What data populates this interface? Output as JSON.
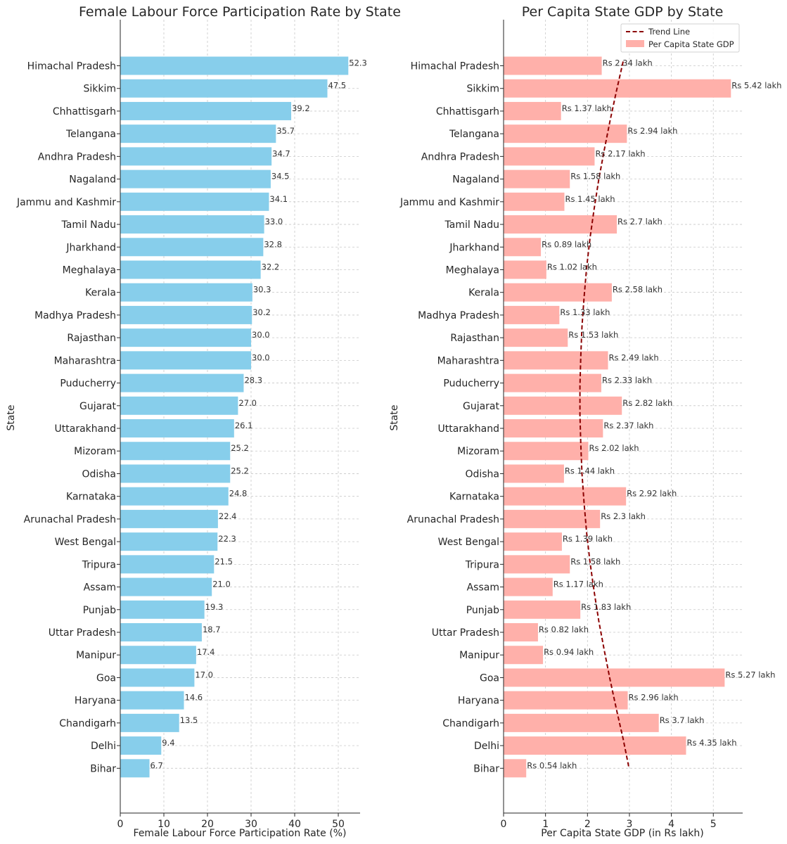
{
  "chart_data": [
    {
      "type": "bar",
      "orientation": "horizontal",
      "title": "Female Labour Force Participation Rate by State",
      "xlabel": "Female Labour Force Participation Rate (%)",
      "ylabel": "State",
      "xlim": [
        0,
        55
      ],
      "xticks": [
        0,
        10,
        20,
        30,
        40,
        50
      ],
      "grid": true,
      "color": "#87CEEB",
      "categories": [
        "Himachal Pradesh",
        "Sikkim",
        "Chhattisgarh",
        "Telangana",
        "Andhra Pradesh",
        "Nagaland",
        "Jammu and Kashmir",
        "Tamil Nadu",
        "Jharkhand",
        "Meghalaya",
        "Kerala",
        "Madhya Pradesh",
        "Rajasthan",
        "Maharashtra",
        "Puducherry",
        "Gujarat",
        "Uttarakhand",
        "Mizoram",
        "Odisha",
        "Karnataka",
        "Arunachal Pradesh",
        "West Bengal",
        "Tripura",
        "Assam",
        "Punjab",
        "Uttar Pradesh",
        "Manipur",
        "Goa",
        "Haryana",
        "Chandigarh",
        "Delhi",
        "Bihar"
      ],
      "values": [
        52.3,
        47.5,
        39.2,
        35.7,
        34.7,
        34.5,
        34.1,
        33.0,
        32.8,
        32.2,
        30.3,
        30.2,
        30.0,
        30.0,
        28.3,
        27.0,
        26.1,
        25.2,
        25.2,
        24.8,
        22.4,
        22.3,
        21.5,
        21.0,
        19.3,
        18.7,
        17.4,
        17.0,
        14.6,
        13.5,
        9.4,
        6.7
      ],
      "labels": [
        "52.3",
        "47.5",
        "39.2",
        "35.7",
        "34.7",
        "34.5",
        "34.1",
        "33.0",
        "32.8",
        "32.2",
        "30.3",
        "30.2",
        "30.0",
        "30.0",
        "28.3",
        "27.0",
        "26.1",
        "25.2",
        "25.2",
        "24.8",
        "22.4",
        "22.3",
        "21.5",
        "21.0",
        "19.3",
        "18.7",
        "17.4",
        "17.0",
        "14.6",
        "13.5",
        "9.4",
        "6.7"
      ]
    },
    {
      "type": "bar",
      "orientation": "horizontal",
      "title": "Per Capita State GDP by State",
      "xlabel": "Per Capita State GDP (in Rs lakh)",
      "ylabel": "State",
      "xlim": [
        0,
        5.7
      ],
      "xticks": [
        0,
        1,
        2,
        3,
        4,
        5
      ],
      "grid": true,
      "color": "#FFB0AA",
      "trend_color": "#8B0000",
      "legend_position": "upper right",
      "legend": [
        "Trend Line",
        "Per Capita State GDP"
      ],
      "categories": [
        "Himachal Pradesh",
        "Sikkim",
        "Chhattisgarh",
        "Telangana",
        "Andhra Pradesh",
        "Nagaland",
        "Jammu and Kashmir",
        "Tamil Nadu",
        "Jharkhand",
        "Meghalaya",
        "Kerala",
        "Madhya Pradesh",
        "Rajasthan",
        "Maharashtra",
        "Puducherry",
        "Gujarat",
        "Uttarakhand",
        "Mizoram",
        "Odisha",
        "Karnataka",
        "Arunachal Pradesh",
        "West Bengal",
        "Tripura",
        "Assam",
        "Punjab",
        "Uttar Pradesh",
        "Manipur",
        "Goa",
        "Haryana",
        "Chandigarh",
        "Delhi",
        "Bihar"
      ],
      "values": [
        2.34,
        5.42,
        1.37,
        2.94,
        2.17,
        1.58,
        1.45,
        2.7,
        0.89,
        1.02,
        2.58,
        1.33,
        1.53,
        2.49,
        2.33,
        2.82,
        2.37,
        2.02,
        1.44,
        2.92,
        2.3,
        1.39,
        1.58,
        1.17,
        1.83,
        0.82,
        0.94,
        5.27,
        2.96,
        3.7,
        4.35,
        0.54
      ],
      "labels": [
        "Rs 2.34 lakh",
        "Rs 5.42 lakh",
        "Rs 1.37 lakh",
        "Rs 2.94 lakh",
        "Rs 2.17 lakh",
        "Rs 1.58 lakh",
        "Rs 1.45 lakh",
        "Rs 2.7 lakh",
        "Rs 0.89 lakh",
        "Rs 1.02 lakh",
        "Rs 2.58 lakh",
        "Rs 1.33 lakh",
        "Rs 1.53 lakh",
        "Rs 2.49 lakh",
        "Rs 2.33 lakh",
        "Rs 2.82 lakh",
        "Rs 2.37 lakh",
        "Rs 2.02 lakh",
        "Rs 1.44 lakh",
        "Rs 2.92 lakh",
        "Rs 2.3 lakh",
        "Rs 1.39 lakh",
        "Rs 1.58 lakh",
        "Rs 1.17 lakh",
        "Rs 1.83 lakh",
        "Rs 0.82 lakh",
        "Rs 0.94 lakh",
        "Rs 5.27 lakh",
        "Rs 2.96 lakh",
        "Rs 3.7 lakh",
        "Rs 4.35 lakh",
        "Rs 0.54 lakh"
      ],
      "trend_line": {
        "type": "polynomial fit (degree 2)",
        "x": [
          2.85,
          2.69,
          2.54,
          2.4,
          2.27,
          2.16,
          2.06,
          1.98,
          1.92,
          1.87,
          1.84,
          1.82,
          1.82,
          1.84,
          1.87,
          1.92,
          1.98,
          2.06,
          2.16,
          2.27,
          2.4,
          2.54,
          2.69,
          2.85,
          2.99
        ]
      }
    }
  ]
}
